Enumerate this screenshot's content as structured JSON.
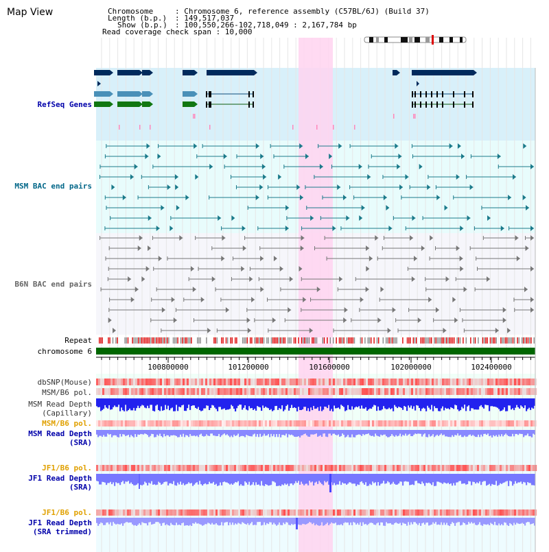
{
  "page_title": "Map View",
  "header": {
    "chromosome_key": "Chromosome",
    "chromosome_val": ": Chromosome 6, reference assembly (C57BL/6J) (Build 37)",
    "length_key": "Length (b.p.)",
    "length_val": ": 149,517,037",
    "show_key": "Show (b.p.)",
    "show_val": ": 100,550,266-102,718,049 : 2,167,784 bp",
    "coverage_line": "Read coverage check span : 10,000"
  },
  "tracks": [
    {
      "id": "refseq",
      "label": "RefSeq Genes",
      "color": "#0000aa"
    },
    {
      "id": "msm-bac",
      "label": "MSM BAC end pairs",
      "color": "#006688"
    },
    {
      "id": "b6n-bac",
      "label": "B6N BAC end pairs",
      "color": "#666666"
    },
    {
      "id": "repeat",
      "label": "Repeat",
      "color": "#000000"
    },
    {
      "id": "chromosome",
      "label": "chromosome 6",
      "color": "#000000"
    },
    {
      "id": "dbsnp",
      "label": "dbSNP(Mouse)",
      "color": "#333333"
    },
    {
      "id": "msm-b6-pol",
      "label": "MSM/B6 pol.",
      "color": "#333333"
    },
    {
      "id": "msm-depth-cap-1",
      "label": "MSM Read Depth",
      "color": "#333333"
    },
    {
      "id": "msm-depth-cap-2",
      "label": "(Capillary)",
      "color": "#333333"
    },
    {
      "id": "msm-b6-pol-2",
      "label": "MSM/B6 pol.",
      "color": "#e0a000"
    },
    {
      "id": "msm-depth-sra-1",
      "label": "MSM Read Depth",
      "color": "#0000aa"
    },
    {
      "id": "msm-depth-sra-2",
      "label": "(SRA)",
      "color": "#0000aa"
    },
    {
      "id": "jf1-b6-pol-1",
      "label": "JF1/B6 pol.",
      "color": "#e0a000"
    },
    {
      "id": "jf1-depth-1",
      "label": "JF1 Read Depth",
      "color": "#0000aa"
    },
    {
      "id": "jf1-depth-1b",
      "label": "(SRA)",
      "color": "#0000aa"
    },
    {
      "id": "jf1-b6-pol-2",
      "label": "JF1/B6 pol.",
      "color": "#e0a000"
    },
    {
      "id": "jf1-depth-2",
      "label": "JF1 Read Depth",
      "color": "#0000aa"
    },
    {
      "id": "jf1-depth-2b",
      "label": "(SRA trimmed)",
      "color": "#0000aa"
    }
  ],
  "ruler": {
    "positions": [
      "100800000",
      "101200000",
      "101600000",
      "102000000",
      "102400000"
    ]
  },
  "colors": {
    "refseq_dark": "#002a5c",
    "refseq_mid": "#4a90b8",
    "refseq_green": "#117711",
    "msm_bg": "#e8fcfc",
    "refseq_bg": "#d8f0fa",
    "b6n_bg": "#f6f6fb",
    "highlight": "#ffd4f0",
    "chromosome_bar": "#006600",
    "repeat_red": "#dd0000",
    "depth_blue": "#1111ee"
  }
}
